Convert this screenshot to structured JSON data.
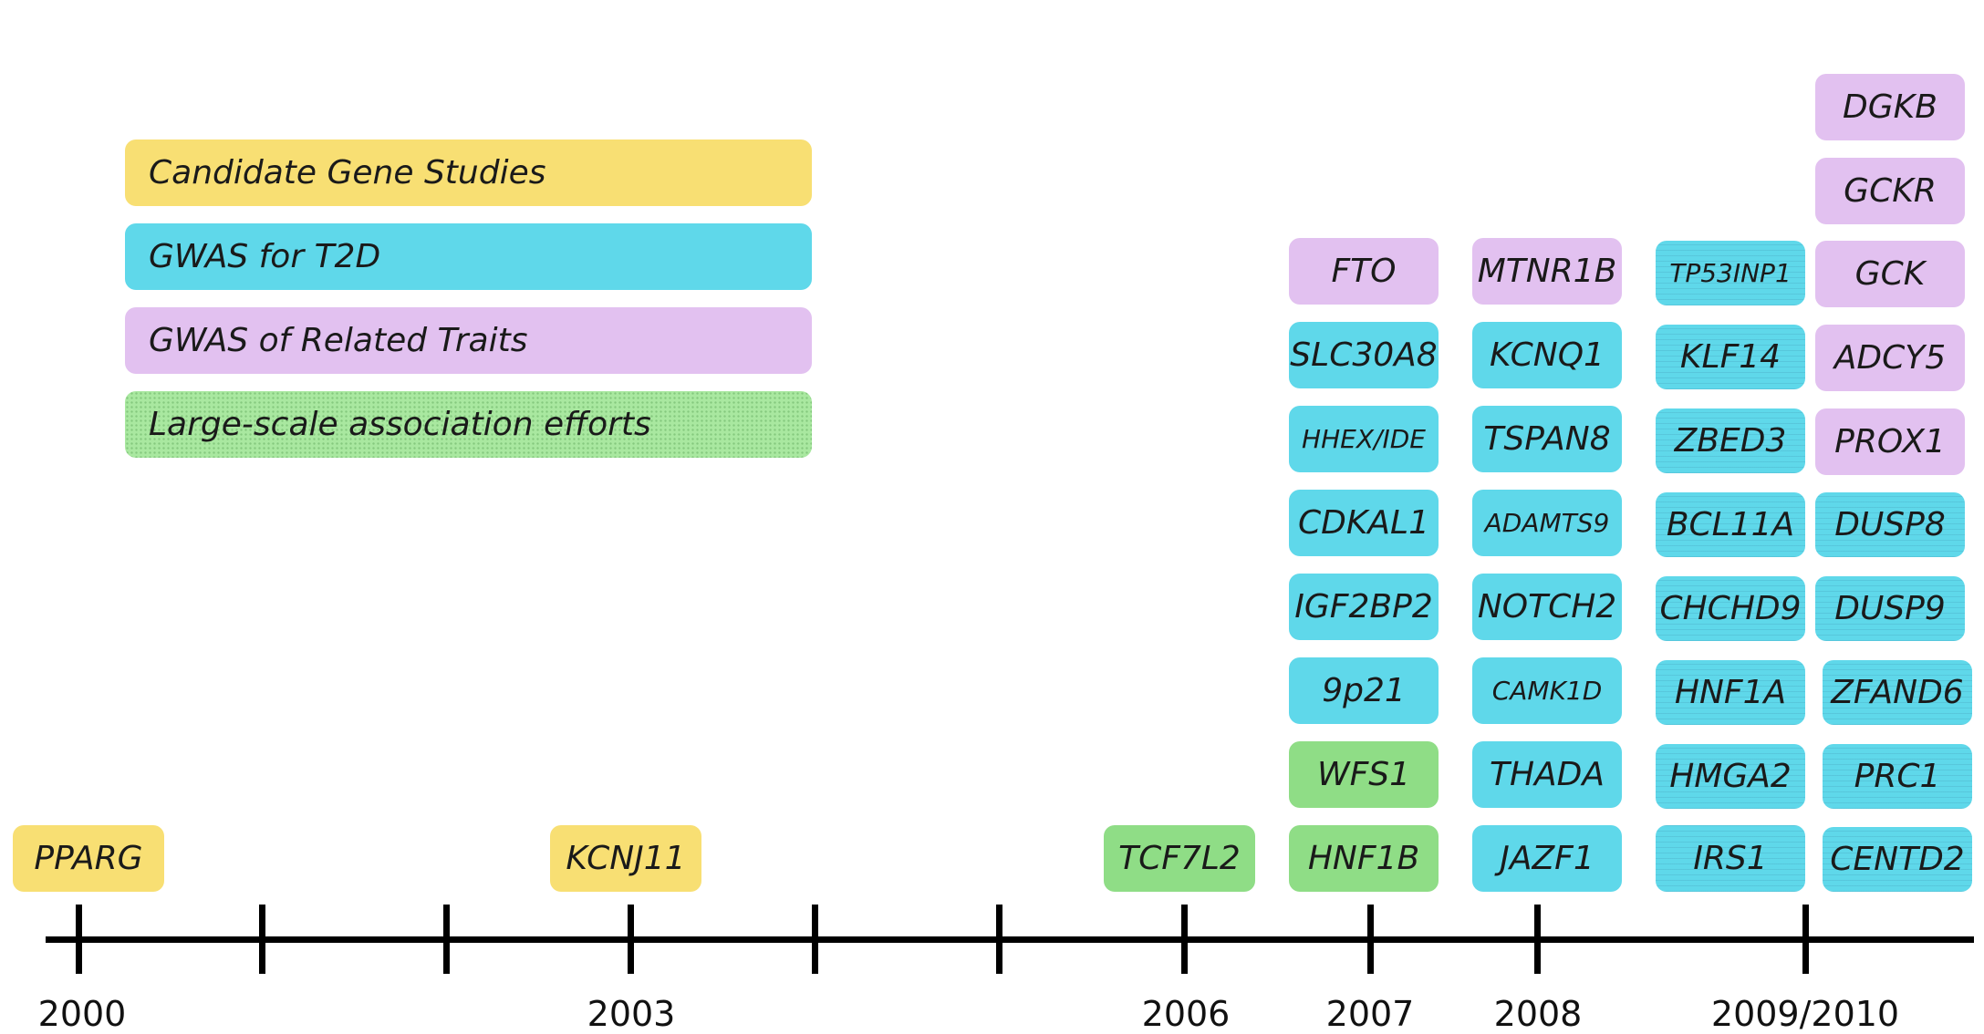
{
  "legend": [
    {
      "label": "Candidate Gene Studies",
      "color": "#f8df73"
    },
    {
      "label": "GWAS for T2D",
      "color": "#5fd8ea"
    },
    {
      "label": "GWAS of Related Traits",
      "color": "#e2c1f0"
    },
    {
      "label": "Large-scale association efforts",
      "color": "#a9e8a0"
    }
  ],
  "timeline": {
    "years": [
      "2000",
      "2003",
      "2006",
      "2007",
      "2008",
      "2009/2010"
    ]
  },
  "genes": {
    "y2000": [
      "PPARG"
    ],
    "y2003": [
      "KCNJ11"
    ],
    "y2006": [
      "TCF7L2"
    ],
    "y2007": [
      "FTO",
      "SLC30A8",
      "HHEX/IDE",
      "CDKAL1",
      "IGF2BP2",
      "9p21",
      "WFS1",
      "HNF1B"
    ],
    "y2008": [
      "MTNR1B",
      "KCNQ1",
      "TSPAN8",
      "ADAMTS9",
      "NOTCH2",
      "CAMK1D",
      "THADA",
      "JAZF1"
    ],
    "y2009a": [
      "TP53INP1",
      "KLF14",
      "ZBED3",
      "BCL11A",
      "CHCHD9",
      "HNF1A",
      "HMGA2",
      "IRS1"
    ],
    "y2009b": [
      "DGKB",
      "GCKR",
      "GCK",
      "ADCY5",
      "PROX1",
      "DUSP8",
      "DUSP9",
      "ZFAND6",
      "PRC1",
      "CENTD2"
    ]
  }
}
